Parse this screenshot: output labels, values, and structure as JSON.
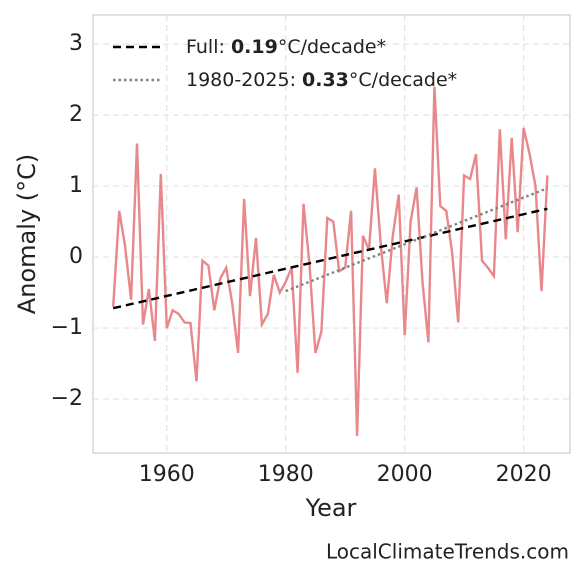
{
  "chart_data": {
    "type": "line",
    "xlabel": "Year",
    "ylabel": "Anomaly (°C)",
    "source": "LocalClimateTrends.com",
    "xlim": [
      1947.6,
      2027.8
    ],
    "ylim": [
      -2.76,
      3.41
    ],
    "xticks": [
      1960,
      1980,
      2000,
      2020
    ],
    "yticks": [
      {
        "value": -2,
        "label": "−2"
      },
      {
        "value": -1,
        "label": "−1"
      },
      0,
      1,
      2,
      3
    ],
    "grid": true,
    "legend": "upper left",
    "series": [
      {
        "name": null,
        "color": "#e8888b",
        "style": "solid",
        "x": [
          1951,
          1952,
          1953,
          1954,
          1955,
          1956,
          1957,
          1958,
          1959,
          1960,
          1961,
          1962,
          1963,
          1964,
          1965,
          1966,
          1967,
          1968,
          1969,
          1970,
          1971,
          1972,
          1973,
          1974,
          1975,
          1976,
          1977,
          1978,
          1979,
          1980,
          1981,
          1982,
          1983,
          1984,
          1985,
          1986,
          1987,
          1988,
          1989,
          1990,
          1991,
          1992,
          1993,
          1994,
          1995,
          1996,
          1997,
          1998,
          1999,
          2000,
          2001,
          2002,
          2003,
          2004,
          2005,
          2006,
          2007,
          2008,
          2009,
          2010,
          2011,
          2012,
          2013,
          2014,
          2015,
          2016,
          2017,
          2018,
          2019,
          2020,
          2021,
          2022,
          2023,
          2024
        ],
        "values": [
          -0.7,
          0.65,
          0.15,
          -0.6,
          1.6,
          -0.95,
          -0.45,
          -1.18,
          1.17,
          -1.0,
          -0.75,
          -0.8,
          -0.92,
          -0.93,
          -1.75,
          -0.05,
          -0.12,
          -0.75,
          -0.3,
          -0.15,
          -0.65,
          -1.35,
          0.82,
          -0.55,
          0.27,
          -0.95,
          -0.8,
          -0.25,
          -0.5,
          -0.35,
          -0.15,
          -1.63,
          0.75,
          -0.1,
          -1.35,
          -1.05,
          0.55,
          0.5,
          -0.2,
          -0.15,
          0.65,
          -2.52,
          0.3,
          0.1,
          1.25,
          0.15,
          -0.65,
          0.3,
          0.88,
          -1.1,
          0.5,
          0.98,
          -0.35,
          -1.2,
          2.4,
          0.72,
          0.65,
          0.05,
          -0.92,
          1.15,
          1.1,
          1.45,
          -0.05,
          -0.15,
          -0.27,
          1.8,
          0.25,
          1.68,
          0.35,
          1.82,
          1.45,
          1.0,
          -0.48,
          1.15
        ]
      },
      {
        "name": "Full: 0.19°C/decade*",
        "color": "#000000",
        "style": "dashed",
        "x": [
          1951,
          2024
        ],
        "values": [
          -0.72,
          0.68
        ]
      },
      {
        "name": "1980-2025: 0.33°C/decade*",
        "color": "#808080",
        "style": "dotted",
        "x": [
          1980,
          2024
        ],
        "values": [
          -0.48,
          0.97
        ]
      }
    ]
  }
}
